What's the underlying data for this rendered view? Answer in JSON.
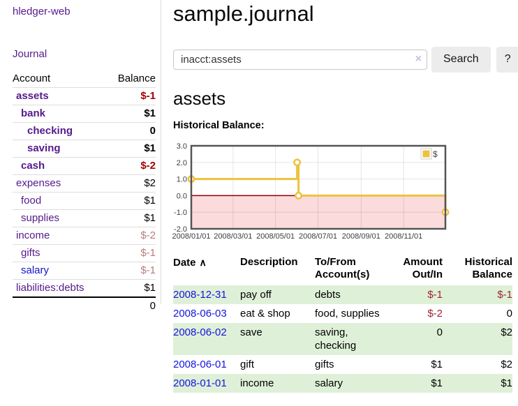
{
  "sidebar": {
    "app_title": "hledger-web",
    "nav_journal": "Journal",
    "accounts_table": {
      "col_account": "Account",
      "col_balance": "Balance",
      "rows": [
        {
          "name": "assets",
          "balance": "$-1",
          "depth": 1,
          "bold": true,
          "negative": "strong"
        },
        {
          "name": "bank",
          "balance": "$1",
          "depth": 2,
          "bold": true,
          "negative": "none"
        },
        {
          "name": "checking",
          "balance": "0",
          "depth": 3,
          "bold": true,
          "negative": "none"
        },
        {
          "name": "saving",
          "balance": "$1",
          "depth": 3,
          "bold": true,
          "negative": "none"
        },
        {
          "name": "cash",
          "balance": "$-2",
          "depth": 2,
          "bold": true,
          "negative": "strong"
        },
        {
          "name": "expenses",
          "balance": "$2",
          "depth": 1,
          "bold": false,
          "negative": "none"
        },
        {
          "name": "food",
          "balance": "$1",
          "depth": 2,
          "bold": false,
          "negative": "none"
        },
        {
          "name": "supplies",
          "balance": "$1",
          "depth": 2,
          "bold": false,
          "negative": "none"
        },
        {
          "name": "income",
          "balance": "$-2",
          "depth": 1,
          "bold": false,
          "negative": "soft"
        },
        {
          "name": "gifts",
          "balance": "$-1",
          "depth": 2,
          "bold": false,
          "negative": "soft"
        },
        {
          "name": "salary",
          "balance": "$-1",
          "depth": 2,
          "bold": false,
          "negative": "soft",
          "link_style": "unvisited"
        },
        {
          "name": "liabilities:debts",
          "balance": "$1",
          "depth": 1,
          "bold": false,
          "negative": "none"
        }
      ],
      "total": "0"
    }
  },
  "header": {
    "title": "sample.journal"
  },
  "search": {
    "query": "inacct:assets",
    "clear_icon": "×",
    "button_label": "Search",
    "help_label": "?"
  },
  "account_page": {
    "heading": "assets",
    "chart_label": "Historical Balance:"
  },
  "chart_data": {
    "type": "line",
    "step": true,
    "title": "Historical Balance",
    "series": [
      {
        "name": "$",
        "color": "#edc240",
        "points": [
          [
            "2008-01-01",
            1
          ],
          [
            "2008-06-01",
            2
          ],
          [
            "2008-06-03",
            0
          ],
          [
            "2008-12-31",
            -1
          ]
        ]
      }
    ],
    "x_range": [
      "2008-01-01",
      "2008-12-31"
    ],
    "x_ticks": [
      "2008/01/01",
      "2008/03/01",
      "2008/05/01",
      "2008/07/01",
      "2008/09/01",
      "2008/11/01"
    ],
    "y_ticks": [
      -2.0,
      -1.0,
      0.0,
      1.0,
      2.0,
      3.0
    ],
    "ylim": [
      -2,
      3
    ],
    "grid": true,
    "zero_line_color": "#8b0000",
    "negative_region_color": "#fbdbdb",
    "legend": {
      "label": "$",
      "position": "top-right"
    }
  },
  "register_table": {
    "columns": [
      "Date",
      "Description",
      "To/From Account(s)",
      "Amount Out/In",
      "Historical Balance"
    ],
    "sort_indicator": "∧",
    "rows": [
      {
        "date": "2008-12-31",
        "description": "pay off",
        "accounts": "debts",
        "amount": "$-1",
        "balance": "$-1"
      },
      {
        "date": "2008-06-03",
        "description": "eat & shop",
        "accounts": "food, supplies",
        "amount": "$-2",
        "balance": "0"
      },
      {
        "date": "2008-06-02",
        "description": "save",
        "accounts": "saving, checking",
        "amount": "0",
        "balance": "$2"
      },
      {
        "date": "2008-06-01",
        "description": "gift",
        "accounts": "gifts",
        "amount": "$1",
        "balance": "$2"
      },
      {
        "date": "2008-01-01",
        "description": "income",
        "accounts": "salary",
        "amount": "$1",
        "balance": "$1"
      }
    ]
  },
  "colors": {
    "link_visited": "#551a8b",
    "link_unvisited": "#1414e0",
    "negative_strong": "#a40000",
    "negative_soft": "#b97c7c",
    "negative_table": "#9e2531",
    "row_stripe": "#dff0d8",
    "series_yellow": "#edc240",
    "button_bg": "#ececec",
    "divider": "#dddddd"
  }
}
